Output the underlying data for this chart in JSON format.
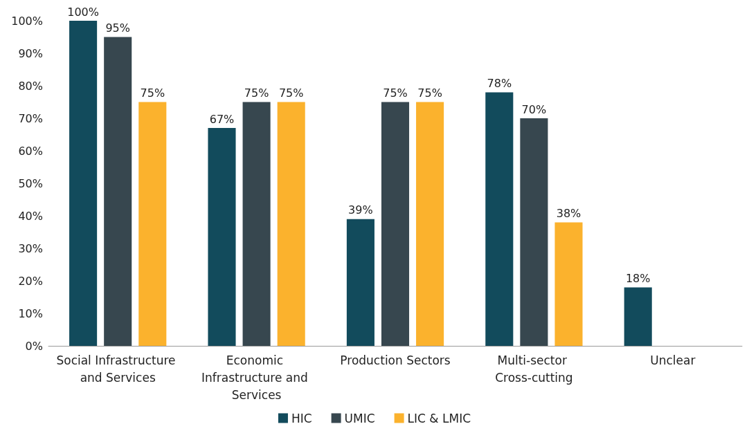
{
  "chart_data": {
    "type": "bar",
    "categories": [
      "Social Infrastructure and Services",
      "Economic Infrastructure and Services",
      "Production Sectors",
      "Multi-sector Cross-cutting",
      "Unclear"
    ],
    "series": [
      {
        "name": "HIC",
        "color": "#124b5c",
        "values": [
          100,
          67,
          39,
          78,
          18
        ],
        "value_labels": [
          "100%",
          "67%",
          "39%",
          "78%",
          "18%"
        ]
      },
      {
        "name": "UMIC",
        "color": "#37474f",
        "values": [
          95,
          75,
          75,
          70,
          null
        ],
        "value_labels": [
          "95%",
          "75%",
          "75%",
          "70%",
          null
        ]
      },
      {
        "name": "LIC & LMIC",
        "color": "#fbb22d",
        "values": [
          75,
          75,
          75,
          38,
          null
        ],
        "value_labels": [
          "75%",
          "75%",
          "75%",
          "38%",
          null
        ]
      }
    ],
    "ylim": [
      0,
      100
    ],
    "yticks": [
      {
        "value": 0,
        "label": "0%"
      },
      {
        "value": 10,
        "label": "10%"
      },
      {
        "value": 20,
        "label": "20%"
      },
      {
        "value": 30,
        "label": "30%"
      },
      {
        "value": 40,
        "label": "40%"
      },
      {
        "value": 50,
        "label": "50%"
      },
      {
        "value": 60,
        "label": "60%"
      },
      {
        "value": 70,
        "label": "70%"
      },
      {
        "value": 80,
        "label": "80%"
      },
      {
        "value": 90,
        "label": "90%"
      },
      {
        "value": 100,
        "label": "100%"
      }
    ],
    "grid": false,
    "legend": "bottom"
  }
}
